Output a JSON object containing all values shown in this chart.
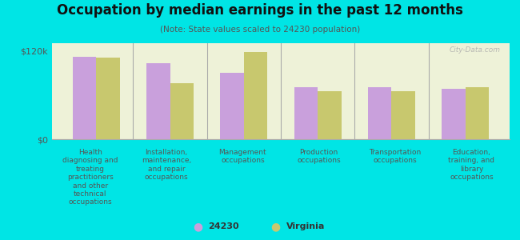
{
  "title": "Occupation by median earnings in the past 12 months",
  "subtitle": "(Note: State values scaled to 24230 population)",
  "background_color": "#00e5e5",
  "plot_bg_color": "#eef2d8",
  "categories": [
    "Health\ndiagnosing and\ntreating\npractitioners\nand other\ntechnical\noccupations",
    "Installation,\nmaintenance,\nand repair\noccupations",
    "Management\noccupations",
    "Production\noccupations",
    "Transportation\noccupations",
    "Education,\ntraining, and\nlibrary\noccupations"
  ],
  "values_24230": [
    112000,
    103000,
    90000,
    70000,
    70000,
    68000
  ],
  "values_virginia": [
    110000,
    76000,
    118000,
    65000,
    65000,
    70000
  ],
  "color_24230": "#c9a0dc",
  "color_virginia": "#c8c86e",
  "ylim": [
    0,
    130000
  ],
  "yticks": [
    0,
    120000
  ],
  "ytick_labels": [
    "$0",
    "$120k"
  ],
  "legend_labels": [
    "24230",
    "Virginia"
  ],
  "watermark": "City-Data.com"
}
